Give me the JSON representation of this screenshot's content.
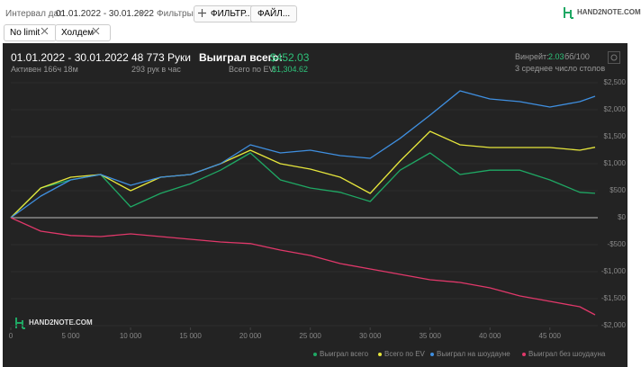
{
  "toolbar": {
    "interval_label": "Интервал дат:",
    "interval_value": "01.01.2022 - 30.01.2022",
    "filters_label": "Фильтры:",
    "filter_button": "ФИЛЬТР...",
    "file_button": "ФАЙЛ...",
    "logo": "HAND2NOTE.COM"
  },
  "tags": [
    "No limit",
    "Холдем"
  ],
  "stats": {
    "period": "01.01.2022 - 30.01.2022",
    "active": "Активен 166ч 18м",
    "hands": "48 773 Руки",
    "hands_per_hour": "293 рук в час",
    "won_label": "Выиграл всего:",
    "won_value": "$452.03",
    "ev_label": "Всего по EV:",
    "ev_value": "$1,304.62",
    "winrate_label": "Винрейт:",
    "winrate_value": "2.03",
    "winrate_unit": "бб/100",
    "tables": "3 среднее число столов",
    "watermark": "HAND2NOTE.COM"
  },
  "chart_data": {
    "type": "line",
    "x": [
      0,
      2500,
      5000,
      7500,
      10000,
      12500,
      15000,
      17500,
      20000,
      22500,
      25000,
      27500,
      30000,
      32500,
      35000,
      37500,
      40000,
      42500,
      45000,
      47500,
      48773
    ],
    "series": [
      {
        "name": "Выиграл всего",
        "color": "#1fa864",
        "values": [
          0,
          550,
          700,
          800,
          200,
          450,
          630,
          880,
          1200,
          700,
          550,
          470,
          300,
          880,
          1200,
          800,
          880,
          880,
          700,
          470,
          452
        ]
      },
      {
        "name": "Всего по EV",
        "color": "#e6e63c",
        "values": [
          0,
          550,
          750,
          800,
          500,
          750,
          800,
          1000,
          1250,
          1000,
          900,
          750,
          450,
          1050,
          1600,
          1350,
          1300,
          1300,
          1300,
          1250,
          1305
        ]
      },
      {
        "name": "Выиграл на шоудауне",
        "color": "#3f8fe0",
        "values": [
          0,
          400,
          700,
          800,
          600,
          750,
          800,
          1000,
          1350,
          1200,
          1250,
          1150,
          1100,
          1470,
          1900,
          2350,
          2200,
          2150,
          2050,
          2150,
          2250
        ]
      },
      {
        "name": "Выиграл без шоудауна",
        "color": "#e0386a",
        "values": [
          0,
          -250,
          -330,
          -350,
          -300,
          -350,
          -400,
          -450,
          -480,
          -600,
          -700,
          -850,
          -950,
          -1050,
          -1150,
          -1200,
          -1300,
          -1450,
          -1550,
          -1650,
          -1800
        ]
      }
    ],
    "xlim": [
      0,
      49000
    ],
    "xticks": [
      0,
      {
        "value": 5000,
        "label": "5 000"
      },
      {
        "value": 10000,
        "label": "10 000"
      },
      {
        "value": 15000,
        "label": "15 000"
      },
      {
        "value": 20000,
        "label": "20 000"
      },
      {
        "value": 25000,
        "label": "25 000"
      },
      {
        "value": 30000,
        "label": "30 000"
      },
      {
        "value": 35000,
        "label": "35 000"
      },
      {
        "value": 40000,
        "label": "40 000"
      },
      {
        "value": 45000,
        "label": "45 000"
      }
    ],
    "ylim": [
      -2000,
      2500
    ],
    "yticks": [
      {
        "value": 2500,
        "label": "$2,500"
      },
      {
        "value": 2000,
        "label": "$2,000"
      },
      {
        "value": 1500,
        "label": "$1,500"
      },
      {
        "value": 1000,
        "label": "$1,000"
      },
      {
        "value": 500,
        "label": "$500"
      },
      {
        "value": 0,
        "label": "$0"
      },
      {
        "value": -500,
        "label": "-$500"
      },
      {
        "value": -1000,
        "label": "-$1,000"
      },
      {
        "value": -1500,
        "label": "-$1,500"
      },
      {
        "value": -2000,
        "label": "-$2,000"
      }
    ],
    "grid": true
  }
}
